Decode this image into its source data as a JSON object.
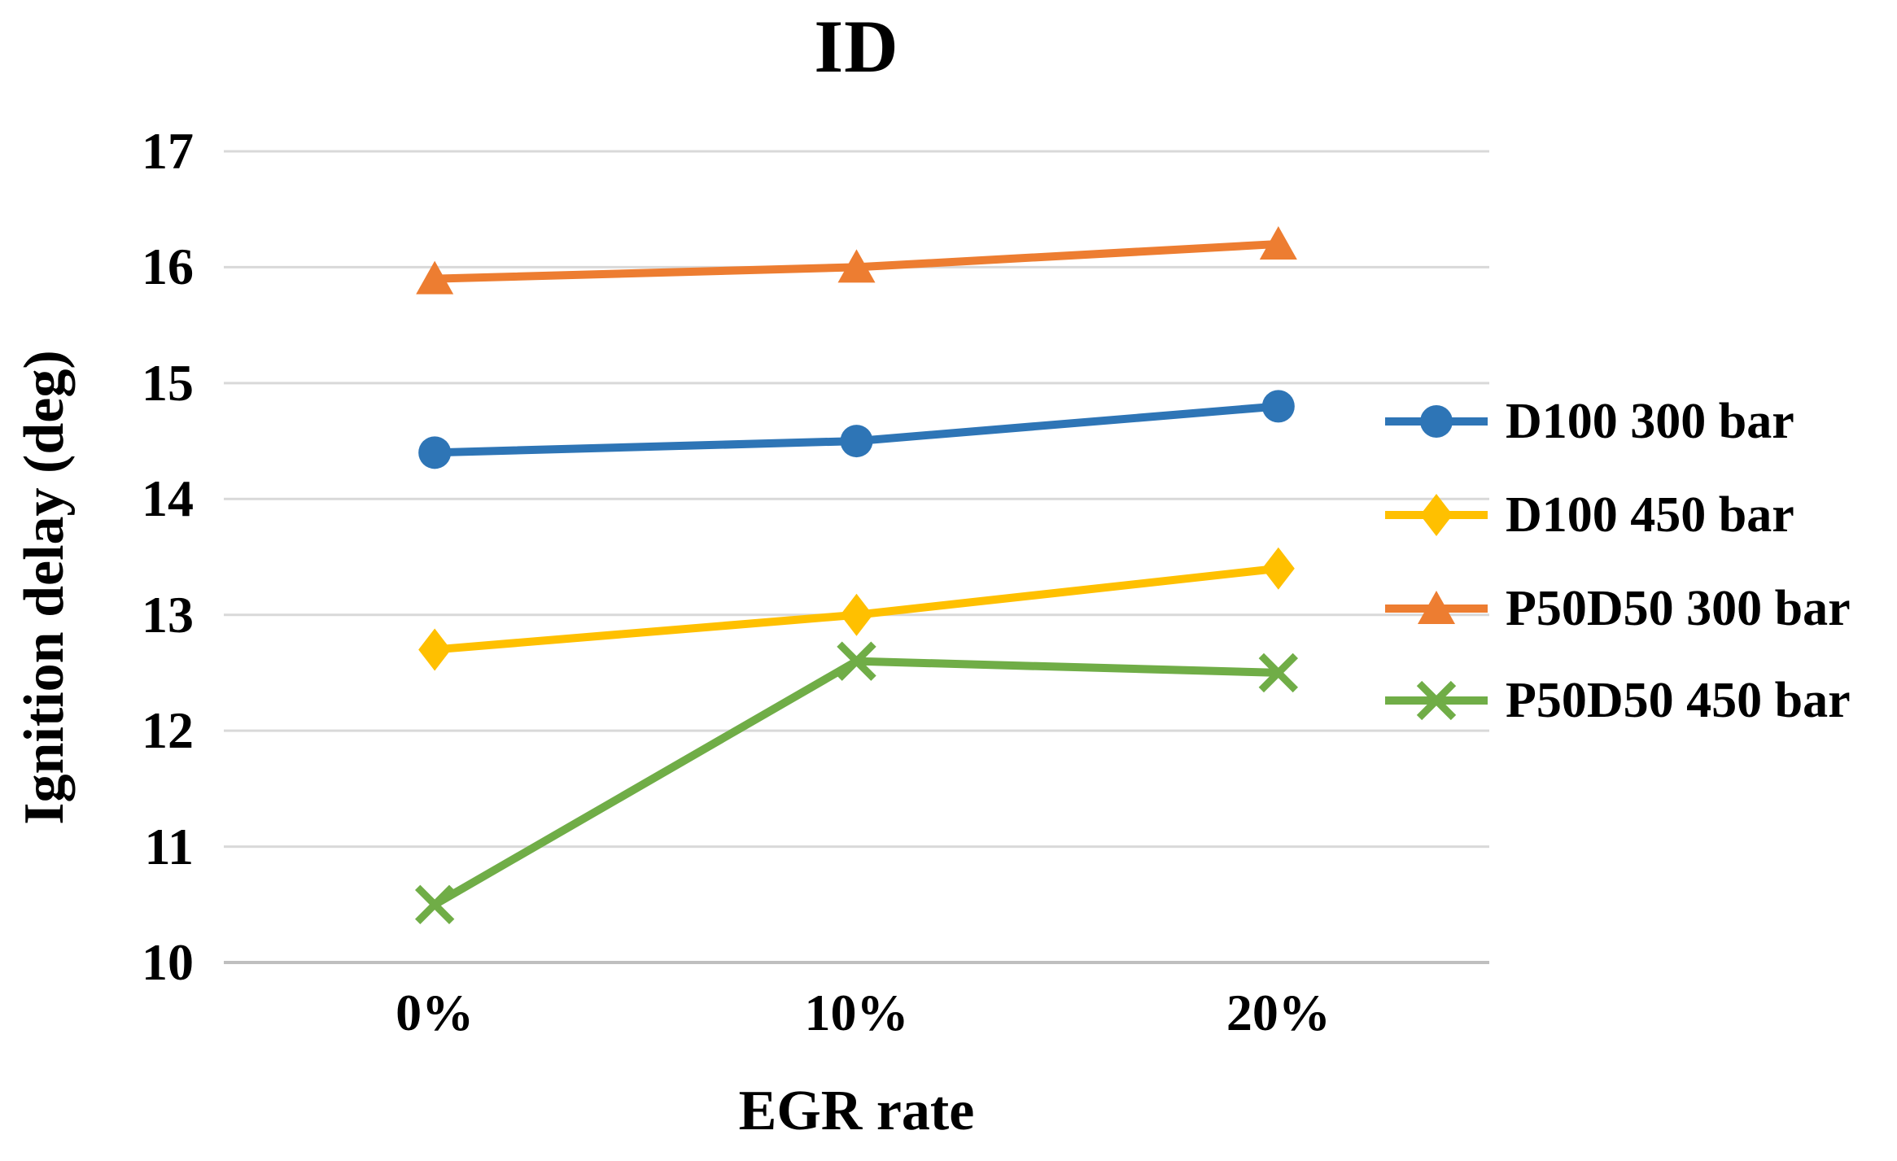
{
  "chart_data": {
    "type": "line",
    "title": "ID",
    "xlabel": "EGR rate",
    "ylabel": "Ignition delay (deg)",
    "categories": [
      "0%",
      "10%",
      "20%"
    ],
    "y_ticks": [
      17,
      16,
      15,
      14,
      13,
      12,
      11,
      10
    ],
    "ylim": [
      10,
      17
    ],
    "grid": "horizontal-gridlines-on",
    "legend_position": "right",
    "series": [
      {
        "name": "D100 300 bar",
        "marker": "circle",
        "color": "#2E75B6",
        "values": [
          14.4,
          14.5,
          14.8
        ]
      },
      {
        "name": "D100 450 bar",
        "marker": "diamond",
        "color": "#FFC000",
        "values": [
          12.7,
          13.0,
          13.4
        ]
      },
      {
        "name": "P50D50 300 bar",
        "marker": "triangle",
        "color": "#ED7D31",
        "values": [
          15.9,
          16.0,
          16.2
        ]
      },
      {
        "name": "P50D50 450 bar",
        "marker": "x",
        "color": "#70AD47",
        "values": [
          10.5,
          12.6,
          12.5
        ]
      }
    ],
    "colors": {
      "gridline": "#D9D9D9",
      "axis_line": "#BFBFBF",
      "text": "#000000",
      "background": "#FFFFFF"
    }
  }
}
